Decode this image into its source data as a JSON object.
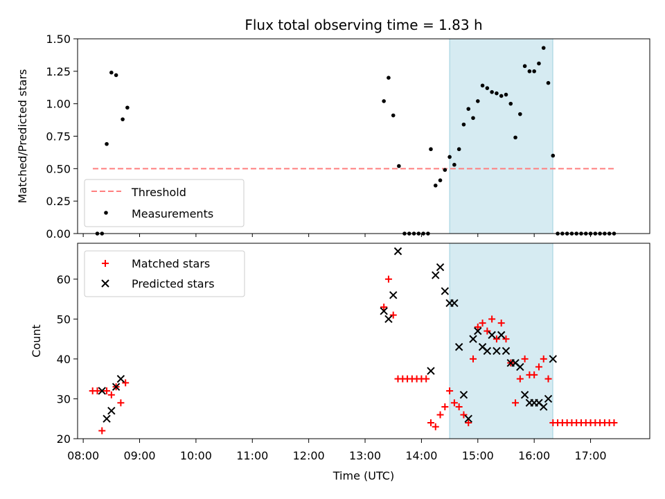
{
  "chart_data": [
    {
      "type": "scatter",
      "title": "Flux total observing time = 1.83 h",
      "ylabel": "Matched/Predicted stars",
      "xlabel": "",
      "xlim": [
        7.9,
        18.05
      ],
      "ylim": [
        0,
        1.5
      ],
      "yticks": [
        "0.00",
        "0.25",
        "0.50",
        "0.75",
        "1.00",
        "1.25",
        "1.50"
      ],
      "shaded_interval": [
        14.5,
        16.33
      ],
      "threshold": {
        "name": "Threshold",
        "value": 0.5,
        "x_range": [
          8.17,
          17.42
        ],
        "color": "#ff7f7f"
      },
      "legend_position": "lower-left",
      "series": [
        {
          "name": "Measurements",
          "color": "#000000",
          "marker": "dot",
          "points": [
            [
              "08:15",
              0
            ],
            [
              "08:20",
              0
            ],
            [
              "08:25",
              0.69
            ],
            [
              "08:30",
              1.24
            ],
            [
              "08:35",
              1.22
            ],
            [
              "08:42",
              0.88
            ],
            [
              "08:47",
              0.97
            ],
            [
              "13:20",
              1.02
            ],
            [
              "13:25",
              1.2
            ],
            [
              "13:30",
              0.91
            ],
            [
              "13:36",
              0.52
            ],
            [
              "13:42",
              0
            ],
            [
              "13:47",
              0
            ],
            [
              "13:52",
              0
            ],
            [
              "13:57",
              0
            ],
            [
              "14:02",
              0
            ],
            [
              "14:07",
              0
            ],
            [
              "14:10",
              0.65
            ],
            [
              "14:15",
              0.37
            ],
            [
              "14:20",
              0.41
            ],
            [
              "14:25",
              0.49
            ],
            [
              "14:30",
              0.59
            ],
            [
              "14:35",
              0.53
            ],
            [
              "14:40",
              0.65
            ],
            [
              "14:45",
              0.84
            ],
            [
              "14:50",
              0.96
            ],
            [
              "14:55",
              0.89
            ],
            [
              "15:00",
              1.02
            ],
            [
              "15:05",
              1.14
            ],
            [
              "15:10",
              1.12
            ],
            [
              "15:15",
              1.09
            ],
            [
              "15:20",
              1.08
            ],
            [
              "15:25",
              1.06
            ],
            [
              "15:30",
              1.07
            ],
            [
              "15:35",
              1.0
            ],
            [
              "15:40",
              0.74
            ],
            [
              "15:45",
              0.92
            ],
            [
              "15:50",
              1.29
            ],
            [
              "15:55",
              1.25
            ],
            [
              "16:00",
              1.25
            ],
            [
              "16:05",
              1.31
            ],
            [
              "16:10",
              1.43
            ],
            [
              "16:15",
              1.16
            ],
            [
              "16:20",
              0.6
            ],
            [
              "16:25",
              0
            ],
            [
              "16:30",
              0
            ],
            [
              "16:35",
              0
            ],
            [
              "16:40",
              0
            ],
            [
              "16:45",
              0
            ],
            [
              "16:50",
              0
            ],
            [
              "16:55",
              0
            ],
            [
              "17:00",
              0
            ],
            [
              "17:05",
              0
            ],
            [
              "17:10",
              0
            ],
            [
              "17:15",
              0
            ],
            [
              "17:20",
              0
            ],
            [
              "17:25",
              0
            ]
          ]
        }
      ]
    },
    {
      "type": "scatter",
      "title": "",
      "ylabel": "Count",
      "xlabel": "Time (UTC)",
      "xlim": [
        7.9,
        18.05
      ],
      "ylim": [
        20,
        69
      ],
      "yticks": [
        "20",
        "30",
        "40",
        "50",
        "60"
      ],
      "xticks": [
        "08:00",
        "09:00",
        "10:00",
        "11:00",
        "12:00",
        "13:00",
        "14:00",
        "15:00",
        "16:00",
        "17:00"
      ],
      "shaded_interval": [
        14.5,
        16.33
      ],
      "legend_position": "upper-left",
      "series": [
        {
          "name": "Matched stars",
          "color": "#ff0000",
          "marker": "plus",
          "points": [
            [
              "08:10",
              32
            ],
            [
              "08:15",
              32
            ],
            [
              "08:20",
              22
            ],
            [
              "08:25",
              32
            ],
            [
              "08:30",
              31
            ],
            [
              "08:35",
              33
            ],
            [
              "08:40",
              29
            ],
            [
              "08:45",
              34
            ],
            [
              "13:20",
              53
            ],
            [
              "13:25",
              60
            ],
            [
              "13:30",
              51
            ],
            [
              "13:35",
              35
            ],
            [
              "13:40",
              35
            ],
            [
              "13:45",
              35
            ],
            [
              "13:50",
              35
            ],
            [
              "13:55",
              35
            ],
            [
              "14:00",
              35
            ],
            [
              "14:05",
              35
            ],
            [
              "14:10",
              24
            ],
            [
              "14:15",
              23
            ],
            [
              "14:20",
              26
            ],
            [
              "14:25",
              28
            ],
            [
              "14:30",
              32
            ],
            [
              "14:35",
              29
            ],
            [
              "14:40",
              28
            ],
            [
              "14:45",
              26
            ],
            [
              "14:50",
              24
            ],
            [
              "14:55",
              40
            ],
            [
              "15:00",
              48
            ],
            [
              "15:05",
              49
            ],
            [
              "15:10",
              47
            ],
            [
              "15:15",
              50
            ],
            [
              "15:20",
              45
            ],
            [
              "15:25",
              49
            ],
            [
              "15:30",
              45
            ],
            [
              "15:35",
              39
            ],
            [
              "15:40",
              29
            ],
            [
              "15:45",
              35
            ],
            [
              "15:50",
              40
            ],
            [
              "15:55",
              36
            ],
            [
              "16:00",
              36
            ],
            [
              "16:05",
              38
            ],
            [
              "16:10",
              40
            ],
            [
              "16:15",
              35
            ],
            [
              "16:20",
              24
            ],
            [
              "16:25",
              24
            ],
            [
              "16:30",
              24
            ],
            [
              "16:35",
              24
            ],
            [
              "16:40",
              24
            ],
            [
              "16:45",
              24
            ],
            [
              "16:50",
              24
            ],
            [
              "16:55",
              24
            ],
            [
              "17:00",
              24
            ],
            [
              "17:05",
              24
            ],
            [
              "17:10",
              24
            ],
            [
              "17:15",
              24
            ],
            [
              "17:20",
              24
            ],
            [
              "17:25",
              24
            ]
          ]
        },
        {
          "name": "Predicted stars",
          "color": "#000000",
          "marker": "cross",
          "points": [
            [
              "08:20",
              32
            ],
            [
              "08:25",
              25
            ],
            [
              "08:30",
              27
            ],
            [
              "08:35",
              33
            ],
            [
              "08:40",
              35
            ],
            [
              "13:20",
              52
            ],
            [
              "13:25",
              50
            ],
            [
              "13:30",
              56
            ],
            [
              "13:35",
              67
            ],
            [
              "14:10",
              37
            ],
            [
              "14:15",
              61
            ],
            [
              "14:20",
              63
            ],
            [
              "14:25",
              57
            ],
            [
              "14:30",
              54
            ],
            [
              "14:35",
              54
            ],
            [
              "14:40",
              43
            ],
            [
              "14:45",
              31
            ],
            [
              "14:50",
              25
            ],
            [
              "14:55",
              45
            ],
            [
              "15:00",
              47
            ],
            [
              "15:05",
              43
            ],
            [
              "15:10",
              42
            ],
            [
              "15:15",
              46
            ],
            [
              "15:20",
              42
            ],
            [
              "15:25",
              46
            ],
            [
              "15:30",
              42
            ],
            [
              "15:35",
              39
            ],
            [
              "15:40",
              39
            ],
            [
              "15:45",
              38
            ],
            [
              "15:50",
              31
            ],
            [
              "15:55",
              29
            ],
            [
              "16:00",
              29
            ],
            [
              "16:05",
              29
            ],
            [
              "16:10",
              28
            ],
            [
              "16:15",
              30
            ],
            [
              "16:20",
              40
            ]
          ]
        }
      ]
    }
  ]
}
